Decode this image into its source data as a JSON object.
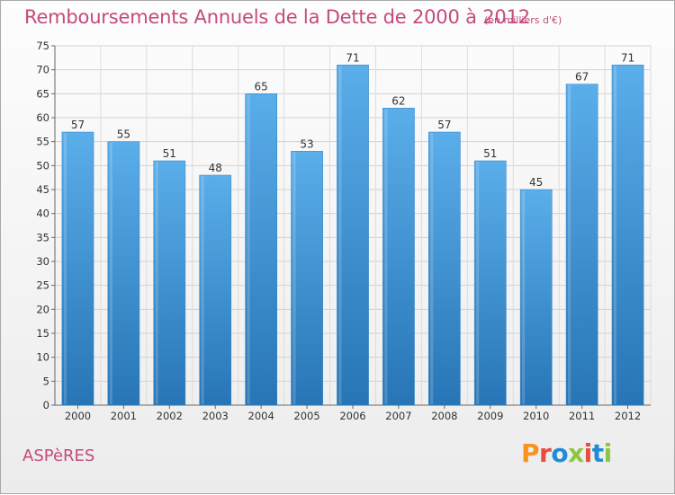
{
  "header": {
    "title": "Remboursements Annuels de la Dette de 2000 à 2012",
    "subtitle": "(en milliers d'€)"
  },
  "footer": {
    "city": "ASPèRES",
    "logo": "Proxiti",
    "logo_colors": [
      "#f7931e",
      "#e84c3d",
      "#1f8dd6",
      "#8dc63f",
      "#e84c3d",
      "#1f8dd6",
      "#8dc63f"
    ]
  },
  "chart_data": {
    "type": "bar",
    "categories": [
      "2000",
      "2001",
      "2002",
      "2003",
      "2004",
      "2005",
      "2006",
      "2007",
      "2008",
      "2009",
      "2010",
      "2011",
      "2012"
    ],
    "values": [
      57,
      55,
      51,
      48,
      65,
      53,
      71,
      62,
      57,
      51,
      45,
      67,
      71
    ],
    "ylim": [
      0,
      75
    ],
    "yticks": [
      0,
      5,
      10,
      15,
      20,
      25,
      30,
      35,
      40,
      45,
      50,
      55,
      60,
      65,
      70,
      75
    ],
    "grid": true,
    "bar_color": "#3d94d6"
  }
}
